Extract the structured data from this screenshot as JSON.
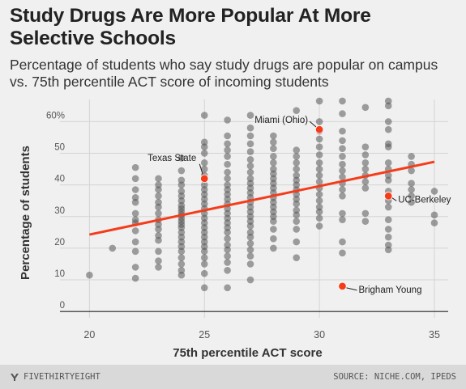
{
  "header": {
    "title": "Study Drugs Are More Popular At More Selective Schools",
    "subtitle": "Percentage of students who say study drugs are popular on campus vs. 75th percentile ACT score of incoming students"
  },
  "footer": {
    "brand": "FIVETHIRTYEIGHT",
    "brand_icon": "fivethirtyeight-logo-icon",
    "source": "SOURCE: NICHE.COM, IPEDS"
  },
  "colors": {
    "background": "#f0f0f0",
    "points": "#555555",
    "highlight": "#f53c1a",
    "trend_line": "#f53c1a",
    "grid": "#d4d4d4"
  },
  "chart_data": {
    "type": "scatter",
    "title": "Study Drugs Are More Popular At More Selective Schools",
    "xlabel": "75th percentile ACT score",
    "ylabel": "Percentage of students",
    "xlim": [
      19,
      35.6
    ],
    "ylim": [
      -2,
      67
    ],
    "x_ticks": [
      20,
      25,
      30,
      35
    ],
    "y_ticks": [
      0,
      10,
      20,
      30,
      40,
      50,
      60
    ],
    "y_tick_labels": [
      "0",
      "10",
      "20",
      "30",
      "40",
      "50",
      "60%"
    ],
    "grid": true,
    "trend_line": {
      "x": [
        20,
        35
      ],
      "y": [
        24.3,
        47.3
      ]
    },
    "series": [
      {
        "points": [
          [
            20,
            11.5
          ],
          [
            21,
            20
          ],
          [
            22,
            10.5
          ],
          [
            22,
            14
          ],
          [
            22,
            19
          ],
          [
            22,
            22
          ],
          [
            22,
            25.5
          ],
          [
            22,
            28
          ],
          [
            22,
            29
          ],
          [
            22,
            31
          ],
          [
            22,
            34.5
          ],
          [
            22,
            36
          ],
          [
            22,
            38.5
          ],
          [
            22,
            42
          ],
          [
            22,
            45.5
          ],
          [
            23,
            14
          ],
          [
            23,
            16
          ],
          [
            23,
            19
          ],
          [
            23,
            22.5
          ],
          [
            23,
            24
          ],
          [
            23,
            26
          ],
          [
            23,
            27.5
          ],
          [
            23,
            29
          ],
          [
            23,
            31
          ],
          [
            23,
            33
          ],
          [
            23,
            34.5
          ],
          [
            23,
            36.5
          ],
          [
            23,
            38.5
          ],
          [
            23,
            40
          ],
          [
            23,
            42
          ],
          [
            24,
            11.5
          ],
          [
            24,
            13
          ],
          [
            24,
            15
          ],
          [
            24,
            17
          ],
          [
            24,
            19
          ],
          [
            24,
            20.5
          ],
          [
            24,
            22
          ],
          [
            24,
            23.5
          ],
          [
            24,
            25
          ],
          [
            24,
            26.5
          ],
          [
            24,
            27.5
          ],
          [
            24,
            28.5
          ],
          [
            24,
            29.5
          ],
          [
            24,
            30.5
          ],
          [
            24,
            31.5
          ],
          [
            24,
            32.5
          ],
          [
            24,
            33.5
          ],
          [
            24,
            35
          ],
          [
            24,
            36.5
          ],
          [
            24,
            38
          ],
          [
            24,
            40
          ],
          [
            24,
            41.5
          ],
          [
            24,
            44.5
          ],
          [
            24,
            48.5
          ],
          [
            25,
            7.5
          ],
          [
            25,
            12
          ],
          [
            25,
            15
          ],
          [
            25,
            17
          ],
          [
            25,
            19
          ],
          [
            25,
            20.5
          ],
          [
            25,
            22
          ],
          [
            25,
            23.5
          ],
          [
            25,
            25
          ],
          [
            25,
            26.5
          ],
          [
            25,
            28
          ],
          [
            25,
            29.5
          ],
          [
            25,
            31
          ],
          [
            25,
            32.5
          ],
          [
            25,
            34
          ],
          [
            25,
            35.5
          ],
          [
            25,
            37
          ],
          [
            25,
            38.5
          ],
          [
            25,
            40
          ],
          [
            25,
            43
          ],
          [
            25,
            45
          ],
          [
            25,
            47
          ],
          [
            25,
            50
          ],
          [
            25,
            52
          ],
          [
            25,
            53.5
          ],
          [
            25,
            62
          ],
          [
            26,
            7.5
          ],
          [
            26,
            13
          ],
          [
            26,
            15.5
          ],
          [
            26,
            17.5
          ],
          [
            26,
            19.5
          ],
          [
            26,
            21
          ],
          [
            26,
            23
          ],
          [
            26,
            25
          ],
          [
            26,
            26.5
          ],
          [
            26,
            28
          ],
          [
            26,
            29.5
          ],
          [
            26,
            31
          ],
          [
            26,
            32.5
          ],
          [
            26,
            34
          ],
          [
            26,
            35.5
          ],
          [
            26,
            37
          ],
          [
            26,
            38.5
          ],
          [
            26,
            40
          ],
          [
            26,
            42
          ],
          [
            26,
            44
          ],
          [
            26,
            46.5
          ],
          [
            26,
            49
          ],
          [
            26,
            51
          ],
          [
            26,
            53
          ],
          [
            26,
            55.5
          ],
          [
            26,
            60.5
          ],
          [
            27,
            10
          ],
          [
            27,
            15
          ],
          [
            27,
            17.5
          ],
          [
            27,
            19.5
          ],
          [
            27,
            21.5
          ],
          [
            27,
            23.5
          ],
          [
            27,
            25
          ],
          [
            27,
            27
          ],
          [
            27,
            28.5
          ],
          [
            27,
            30
          ],
          [
            27,
            31.5
          ],
          [
            27,
            33
          ],
          [
            27,
            34.5
          ],
          [
            27,
            36
          ],
          [
            27,
            37.5
          ],
          [
            27,
            39
          ],
          [
            27,
            40.5
          ],
          [
            27,
            42
          ],
          [
            27,
            44
          ],
          [
            27,
            46
          ],
          [
            27,
            48
          ],
          [
            27,
            50.5
          ],
          [
            27,
            53
          ],
          [
            27,
            55.5
          ],
          [
            27,
            58
          ],
          [
            27,
            62
          ],
          [
            28,
            20
          ],
          [
            28,
            23
          ],
          [
            28,
            26
          ],
          [
            28,
            28.5
          ],
          [
            28,
            30
          ],
          [
            28,
            31.5
          ],
          [
            28,
            33
          ],
          [
            28,
            34.5
          ],
          [
            28,
            36
          ],
          [
            28,
            37.5
          ],
          [
            28,
            39
          ],
          [
            28,
            40.5
          ],
          [
            28,
            42
          ],
          [
            28,
            43.5
          ],
          [
            28,
            45
          ],
          [
            28,
            47
          ],
          [
            28,
            49
          ],
          [
            28,
            51.5
          ],
          [
            28,
            53.5
          ],
          [
            28,
            55.5
          ],
          [
            29,
            17
          ],
          [
            29,
            22
          ],
          [
            29,
            26
          ],
          [
            29,
            28.5
          ],
          [
            29,
            30.5
          ],
          [
            29,
            32
          ],
          [
            29,
            34
          ],
          [
            29,
            35.5
          ],
          [
            29,
            37
          ],
          [
            29,
            38.5
          ],
          [
            29,
            40
          ],
          [
            29,
            41.5
          ],
          [
            29,
            43
          ],
          [
            29,
            45
          ],
          [
            29,
            47
          ],
          [
            29,
            49
          ],
          [
            29,
            51
          ],
          [
            29,
            63.5
          ],
          [
            30,
            27
          ],
          [
            30,
            29.5
          ],
          [
            30,
            31.5
          ],
          [
            30,
            33
          ],
          [
            30,
            35
          ],
          [
            30,
            37
          ],
          [
            30,
            39
          ],
          [
            30,
            41
          ],
          [
            30,
            43
          ],
          [
            30,
            45
          ],
          [
            30,
            47
          ],
          [
            30,
            49.5
          ],
          [
            30,
            52
          ],
          [
            30,
            54.5
          ],
          [
            30,
            57
          ],
          [
            30,
            60
          ],
          [
            30,
            66.5
          ],
          [
            31,
            18.5
          ],
          [
            31,
            22
          ],
          [
            31,
            29
          ],
          [
            31,
            31
          ],
          [
            31,
            36.5
          ],
          [
            31,
            38.5
          ],
          [
            31,
            40.5
          ],
          [
            31,
            42.5
          ],
          [
            31,
            44.5
          ],
          [
            31,
            46.5
          ],
          [
            31,
            49
          ],
          [
            31,
            51.5
          ],
          [
            31,
            54
          ],
          [
            31,
            57
          ],
          [
            31,
            62.5
          ],
          [
            31,
            66.5
          ],
          [
            32,
            28.5
          ],
          [
            32,
            31
          ],
          [
            32,
            39
          ],
          [
            32,
            41
          ],
          [
            32,
            43
          ],
          [
            32,
            45
          ],
          [
            32,
            47
          ],
          [
            32,
            49.5
          ],
          [
            32,
            52
          ],
          [
            32,
            64.5
          ],
          [
            33,
            19.5
          ],
          [
            33,
            21
          ],
          [
            33,
            23.5
          ],
          [
            33,
            26
          ],
          [
            33,
            29
          ],
          [
            33,
            33
          ],
          [
            33,
            35
          ],
          [
            33,
            38
          ],
          [
            33,
            41.5
          ],
          [
            33,
            43
          ],
          [
            33,
            45
          ],
          [
            33,
            47
          ],
          [
            33,
            52
          ],
          [
            33,
            53
          ],
          [
            33,
            57.5
          ],
          [
            33,
            60
          ],
          [
            33,
            65
          ],
          [
            33,
            66.5
          ],
          [
            34,
            34.5
          ],
          [
            34,
            36.5
          ],
          [
            34,
            38.5
          ],
          [
            34,
            40.5
          ],
          [
            34,
            44.5
          ],
          [
            34,
            46.5
          ],
          [
            34,
            49
          ],
          [
            35,
            28
          ],
          [
            35,
            30.5
          ],
          [
            35,
            38
          ]
        ]
      }
    ],
    "highlights": [
      {
        "label": "Texas State",
        "x": 25,
        "y": 42
      },
      {
        "label": "Miami (Ohio)",
        "x": 30,
        "y": 57.5
      },
      {
        "label": "UC-Berkeley",
        "x": 33,
        "y": 36.5
      },
      {
        "label": "Brigham Young",
        "x": 31,
        "y": 8
      }
    ]
  }
}
